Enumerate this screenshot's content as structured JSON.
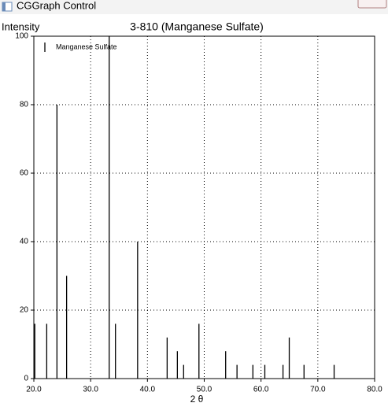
{
  "window_title": "CGGraph Control",
  "chart_data": {
    "type": "stem",
    "title": "3-810 (Manganese Sulfate)",
    "y_label": "Intensity",
    "x_label": "2 θ",
    "x": [
      20.1,
      22.2,
      24.0,
      25.7,
      33.2,
      34.3,
      38.2,
      43.4,
      45.2,
      46.3,
      49.0,
      53.7,
      55.7,
      58.5,
      60.6,
      63.8,
      64.9,
      67.5,
      72.8
    ],
    "series": [
      {
        "name": "Manganese Sulfate",
        "color": "#000000",
        "values": [
          16,
          16,
          80,
          30,
          100,
          16,
          40,
          12,
          8,
          4,
          16,
          8,
          4,
          4,
          4,
          4,
          12,
          4,
          4
        ]
      }
    ],
    "xlim": [
      20,
      80
    ],
    "ylim": [
      0,
      100
    ],
    "xticks": [
      {
        "value": 20,
        "label": "20.0"
      },
      {
        "value": 30,
        "label": "30.0"
      },
      {
        "value": 40,
        "label": "40.0"
      },
      {
        "value": 50,
        "label": "50.0"
      },
      {
        "value": 60,
        "label": "60.0"
      },
      {
        "value": 70,
        "label": "70.0"
      },
      {
        "value": 80,
        "label": "80.0"
      }
    ],
    "yticks": [
      0,
      20,
      40,
      60,
      80,
      100
    ],
    "grid": true,
    "legend": "upper left"
  }
}
